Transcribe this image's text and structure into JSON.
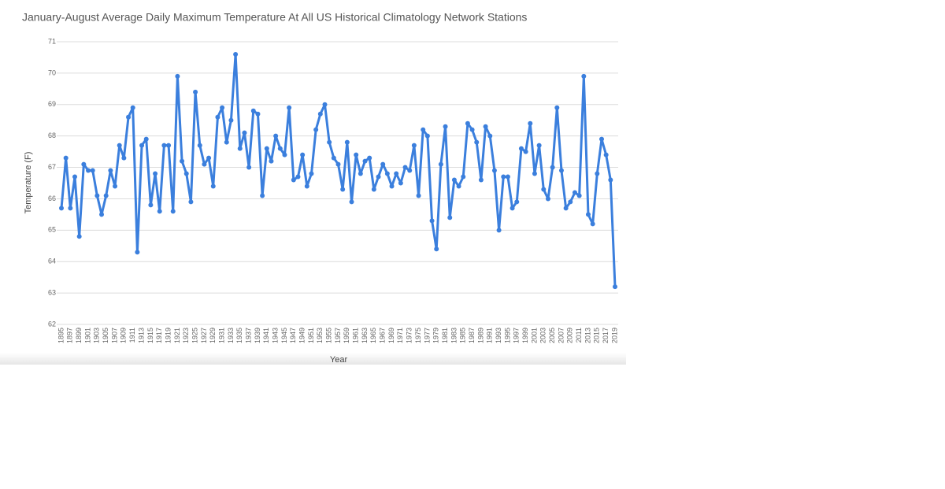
{
  "chart_data": {
    "type": "line",
    "title": "January-August Average Daily Maximum Temperature At All US Historical Climatology Network Stations",
    "xlabel": "Year",
    "ylabel": "Temperature (F)",
    "x": [
      1895,
      1896,
      1897,
      1898,
      1899,
      1900,
      1901,
      1902,
      1903,
      1904,
      1905,
      1906,
      1907,
      1908,
      1909,
      1910,
      1911,
      1912,
      1913,
      1914,
      1915,
      1916,
      1917,
      1918,
      1919,
      1920,
      1921,
      1922,
      1923,
      1924,
      1925,
      1926,
      1927,
      1928,
      1929,
      1930,
      1931,
      1932,
      1933,
      1934,
      1935,
      1936,
      1937,
      1938,
      1939,
      1940,
      1941,
      1942,
      1943,
      1944,
      1945,
      1946,
      1947,
      1948,
      1949,
      1950,
      1951,
      1952,
      1953,
      1954,
      1955,
      1956,
      1957,
      1958,
      1959,
      1960,
      1961,
      1962,
      1963,
      1964,
      1965,
      1966,
      1967,
      1968,
      1969,
      1970,
      1971,
      1972,
      1973,
      1974,
      1975,
      1976,
      1977,
      1978,
      1979,
      1980,
      1981,
      1982,
      1983,
      1984,
      1985,
      1986,
      1987,
      1988,
      1989,
      1990,
      1991,
      1992,
      1993,
      1994,
      1995,
      1996,
      1997,
      1998,
      1999,
      2000,
      2001,
      2002,
      2003,
      2004,
      2005,
      2006,
      2007,
      2008,
      2009,
      2010,
      2011,
      2012,
      2013,
      2014,
      2015,
      2016,
      2017,
      2018,
      2019
    ],
    "series": [
      {
        "name": "Temperature",
        "color": "#3b7fdd",
        "values": [
          65.7,
          67.3,
          65.7,
          66.7,
          64.8,
          67.1,
          66.9,
          66.9,
          66.1,
          65.5,
          66.1,
          66.9,
          66.4,
          67.7,
          67.3,
          68.6,
          68.9,
          64.3,
          67.7,
          67.9,
          65.8,
          66.8,
          65.6,
          67.7,
          67.7,
          65.6,
          69.9,
          67.2,
          66.8,
          65.9,
          69.4,
          67.7,
          67.1,
          67.3,
          66.4,
          68.6,
          68.9,
          67.8,
          68.5,
          70.6,
          67.6,
          68.1,
          67.0,
          68.8,
          68.7,
          66.1,
          67.6,
          67.2,
          68.0,
          67.6,
          67.4,
          68.9,
          66.6,
          66.7,
          67.4,
          66.4,
          66.8,
          68.2,
          68.7,
          69.0,
          67.8,
          67.3,
          67.1,
          66.3,
          67.8,
          65.9,
          67.4,
          66.8,
          67.2,
          67.3,
          66.3,
          66.7,
          67.1,
          66.8,
          66.4,
          66.8,
          66.5,
          67.0,
          66.9,
          67.7,
          66.1,
          68.2,
          68.0,
          65.3,
          64.4,
          67.1,
          68.3,
          65.4,
          66.6,
          66.4,
          66.7,
          68.4,
          68.2,
          67.8,
          66.6,
          68.3,
          68.0,
          66.9,
          65.0,
          66.7,
          66.7,
          65.7,
          65.9,
          67.6,
          67.5,
          68.4,
          66.8,
          67.7,
          66.3,
          66.0,
          67.0,
          68.9,
          66.9,
          65.7,
          65.9,
          66.2,
          66.1,
          69.9,
          65.5,
          65.2,
          66.8,
          67.9,
          67.4,
          66.6,
          63.2
        ]
      }
    ],
    "xlim": [
      1895,
      2019
    ],
    "xticks": [
      1895,
      1897,
      1899,
      1901,
      1903,
      1905,
      1907,
      1909,
      1911,
      1913,
      1915,
      1917,
      1919,
      1921,
      1923,
      1925,
      1927,
      1929,
      1931,
      1933,
      1935,
      1937,
      1939,
      1941,
      1943,
      1945,
      1947,
      1949,
      1951,
      1953,
      1955,
      1957,
      1959,
      1961,
      1963,
      1965,
      1967,
      1969,
      1971,
      1973,
      1975,
      1977,
      1979,
      1981,
      1983,
      1985,
      1987,
      1989,
      1991,
      1993,
      1995,
      1997,
      1999,
      2001,
      2003,
      2005,
      2007,
      2009,
      2011,
      2013,
      2015,
      2017,
      2019
    ],
    "ylim": [
      62,
      71
    ],
    "yticks": [
      62,
      63,
      64,
      65,
      66,
      67,
      68,
      69,
      70,
      71
    ],
    "grid": true
  }
}
